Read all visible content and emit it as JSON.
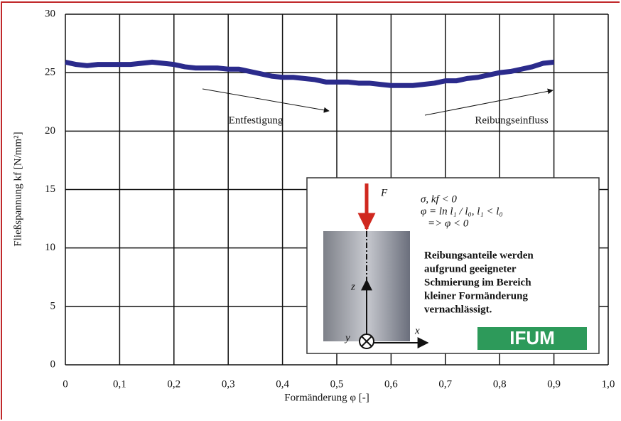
{
  "chart_data": {
    "type": "line",
    "x_label": "Formänderung φ [-]",
    "y_label": "Fließspannung kf [N/mm²]",
    "x": [
      0,
      0.02,
      0.04,
      0.06,
      0.08,
      0.1,
      0.12,
      0.14,
      0.16,
      0.18,
      0.2,
      0.22,
      0.24,
      0.26,
      0.28,
      0.3,
      0.32,
      0.34,
      0.36,
      0.38,
      0.4,
      0.42,
      0.44,
      0.46,
      0.48,
      0.5,
      0.52,
      0.54,
      0.56,
      0.58,
      0.6,
      0.62,
      0.64,
      0.66,
      0.68,
      0.7,
      0.72,
      0.74,
      0.76,
      0.78,
      0.8,
      0.82,
      0.84,
      0.86,
      0.88,
      0.9
    ],
    "values": [
      25.9,
      25.7,
      25.6,
      25.7,
      25.7,
      25.7,
      25.7,
      25.8,
      25.9,
      25.8,
      25.7,
      25.5,
      25.4,
      25.4,
      25.4,
      25.3,
      25.3,
      25.1,
      24.9,
      24.7,
      24.6,
      24.6,
      24.5,
      24.4,
      24.2,
      24.2,
      24.2,
      24.1,
      24.1,
      24.0,
      23.9,
      23.9,
      23.9,
      24.0,
      24.1,
      24.3,
      24.3,
      24.5,
      24.6,
      24.8,
      25.0,
      25.1,
      25.3,
      25.5,
      25.8,
      25.9
    ],
    "color": "#2b2b8c",
    "xlim": [
      0,
      1
    ],
    "xticks": [
      0,
      {
        "value": 0.1,
        "label": "0,1"
      },
      {
        "value": 0.2,
        "label": "0,2"
      },
      {
        "value": 0.3,
        "label": "0,3"
      },
      {
        "value": 0.4,
        "label": "0,4"
      },
      {
        "value": 0.5,
        "label": "0,5"
      },
      {
        "value": 0.6,
        "label": "0,6"
      },
      {
        "value": 0.7,
        "label": "0,7"
      },
      {
        "value": 0.8,
        "label": "0,8"
      },
      {
        "value": 0.9,
        "label": "0,9"
      },
      {
        "value": 1,
        "label": "1,0"
      }
    ],
    "ylim": [
      0,
      30
    ],
    "yticks": [
      0,
      5,
      10,
      15,
      20,
      25,
      30
    ],
    "grid": true,
    "annotations": [
      "Entfestigung",
      "Reibungseinfluss"
    ],
    "inset": {
      "force": "F",
      "axis_z": "z",
      "axis_x": "x",
      "axis_y": "y",
      "formulas": [
        "σ, kf < 0",
        "φ = ln l₁ / l₀,  l₁ < l₀",
        "=> φ < 0"
      ],
      "note": [
        "Reibungsanteile werden",
        "aufgrund geeigneter",
        "Schmierung im Bereich",
        "kleiner Formänderung",
        "vernachlässigt."
      ],
      "logo": "IFUM"
    }
  }
}
